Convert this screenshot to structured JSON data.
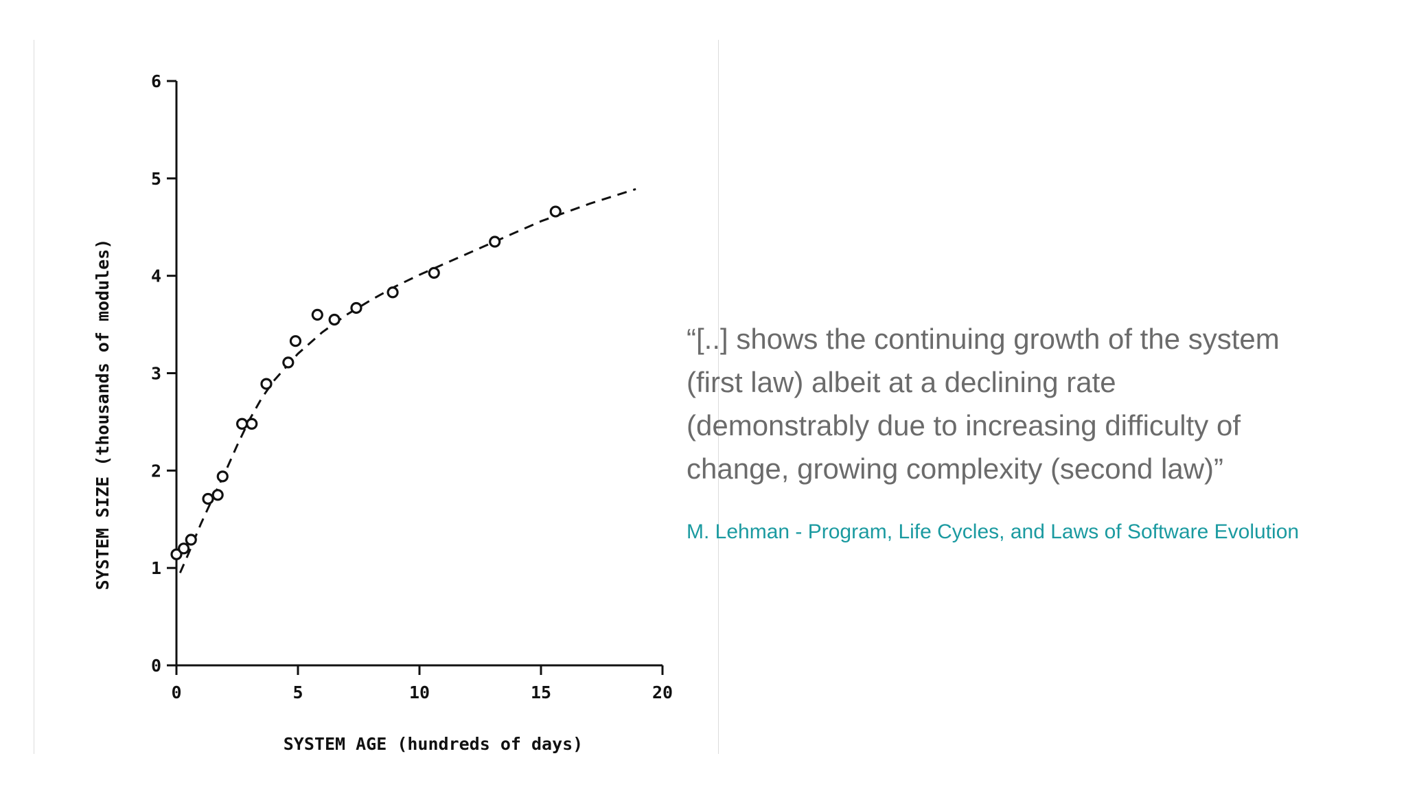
{
  "chart_data": {
    "type": "scatter",
    "xlabel": "SYSTEM AGE (hundreds of days)",
    "ylabel": "SYSTEM SIZE (thousands of modules)",
    "xlim": [
      0,
      20
    ],
    "ylim": [
      0,
      6
    ],
    "xticks": [
      "0",
      "5",
      "10",
      "15",
      "20"
    ],
    "yticks": [
      "0",
      "1",
      "2",
      "3",
      "4",
      "5",
      "6"
    ],
    "grid": false,
    "series": [
      {
        "marker": "open-circle",
        "points": [
          [
            0.0,
            1.14
          ],
          [
            0.3,
            1.2
          ],
          [
            0.6,
            1.29
          ],
          [
            1.3,
            1.71
          ],
          [
            1.7,
            1.75
          ],
          [
            1.9,
            1.94
          ],
          [
            2.7,
            2.48
          ],
          [
            3.1,
            2.48
          ],
          [
            3.7,
            2.89
          ],
          [
            4.6,
            3.11
          ],
          [
            4.9,
            3.33
          ],
          [
            5.8,
            3.6
          ],
          [
            6.5,
            3.55
          ],
          [
            7.4,
            3.67
          ],
          [
            8.9,
            3.83
          ],
          [
            10.6,
            4.03
          ],
          [
            13.1,
            4.35
          ],
          [
            15.6,
            4.66
          ]
        ]
      },
      {
        "line_style": "dashed",
        "points": [
          [
            0.15,
            0.95
          ],
          [
            0.5,
            1.15
          ],
          [
            1.0,
            1.45
          ],
          [
            1.5,
            1.72
          ],
          [
            2.0,
            1.98
          ],
          [
            2.5,
            2.26
          ],
          [
            3.0,
            2.52
          ],
          [
            3.5,
            2.74
          ],
          [
            4.0,
            2.92
          ],
          [
            4.5,
            3.06
          ],
          [
            5.0,
            3.2
          ],
          [
            6.0,
            3.42
          ],
          [
            7.0,
            3.6
          ],
          [
            8.0,
            3.75
          ],
          [
            9.0,
            3.89
          ],
          [
            10.0,
            4.01
          ],
          [
            11.0,
            4.12
          ],
          [
            12.0,
            4.23
          ],
          [
            13.0,
            4.34
          ],
          [
            14.0,
            4.45
          ],
          [
            15.0,
            4.56
          ],
          [
            16.0,
            4.65
          ],
          [
            17.0,
            4.74
          ],
          [
            18.0,
            4.82
          ],
          [
            18.9,
            4.89
          ]
        ]
      }
    ]
  },
  "quote": {
    "lines": [
      "“[..] shows the continuing growth of the system",
      "(first law) albeit at a declining rate",
      "(demonstrably due to increasing difficulty of",
      "change, growing complexity (second law)”"
    ],
    "citation": "M. Lehman - Program, Life Cycles, and Laws of Software Evolution"
  },
  "colors": {
    "quote_text": "#6b6b6b",
    "citation": "#1a9aa0",
    "chart_ink": "#111111"
  }
}
